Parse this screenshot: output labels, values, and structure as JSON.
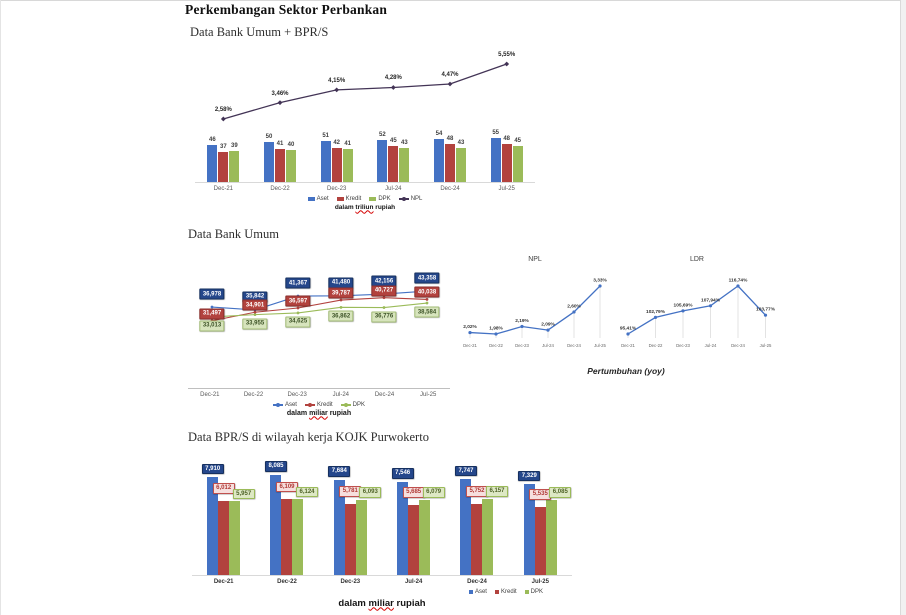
{
  "page": {
    "title": "Perkembangan Sektor Perbankan",
    "section1_title": "Data Bank Umum + BPR/S",
    "section2_title": "Data Bank Umum",
    "section3_title": "Data BPR/S di wilayah kerja KOJK Purwokerto",
    "pertumbuhan_caption": "Pertumbuhan (yoy)"
  },
  "colors": {
    "aset": "#4472C4",
    "kredit": "#B2423E",
    "dpk": "#9BBB59",
    "npl_line": "#433456",
    "mini_line": "#4472C4"
  },
  "chart_data": [
    {
      "id": "c1",
      "type": "bar",
      "title": "Data Bank Umum + BPR/S",
      "categories": [
        "Dec-21",
        "Dec-22",
        "Dec-23",
        "Jul-24",
        "Dec-24",
        "Jul-25"
      ],
      "series": [
        {
          "name": "Aset",
          "type": "bar",
          "color": "#4472C4",
          "values": [
            46,
            50,
            51,
            52,
            54,
            55
          ]
        },
        {
          "name": "Kredit",
          "type": "bar",
          "color": "#B2423E",
          "values": [
            37,
            41,
            42,
            45,
            48,
            48
          ]
        },
        {
          "name": "DPK",
          "type": "bar",
          "color": "#9BBB59",
          "values": [
            39,
            40,
            41,
            43,
            43,
            45
          ]
        },
        {
          "name": "NPL",
          "type": "line",
          "color": "#433456",
          "values": [
            2.58,
            3.46,
            4.15,
            4.28,
            4.47,
            5.55
          ],
          "labels": [
            "2,58%",
            "3,46%",
            "4,15%",
            "4,28%",
            "4,47%",
            "5,55%"
          ]
        }
      ],
      "caption": {
        "pre": "dalam",
        "word": "triliun",
        "post": "rupiah"
      }
    },
    {
      "id": "c2",
      "type": "line",
      "title": "Data Bank Umum",
      "categories": [
        "Dec-21",
        "Dec-22",
        "Dec-23",
        "Jul-24",
        "Dec-24",
        "Jul-25"
      ],
      "series": [
        {
          "name": "Aset",
          "color": "#4472C4",
          "values": [
            36978,
            35842,
            41367,
            41480,
            42156,
            43358
          ],
          "labels": [
            "36,978",
            "35,842",
            "41,367",
            "41,480",
            "42,156",
            "43,358"
          ]
        },
        {
          "name": "Kredit",
          "color": "#B2423E",
          "values": [
            31497,
            34901,
            36597,
            39787,
            40727,
            40038
          ],
          "labels": [
            "31,497",
            "34,901",
            "36,597",
            "39,787",
            "40,727",
            "40,038"
          ]
        },
        {
          "name": "DPK",
          "color": "#9BBB59",
          "values": [
            33013,
            33955,
            34625,
            36862,
            36776,
            38584
          ],
          "labels": [
            "33,013",
            "33,955",
            "34,625",
            "36,862",
            "36,776",
            "38,584"
          ]
        }
      ],
      "caption": {
        "pre": "dalam",
        "word": "miliar",
        "post": "rupiah"
      }
    },
    {
      "id": "npl",
      "type": "line",
      "title": "NPL",
      "categories": [
        "Dec-21",
        "Dec-22",
        "Dec-23",
        "Jul-24",
        "Dec-24",
        "Jul-25"
      ],
      "values": [
        2.02,
        1.98,
        2.19,
        2.09,
        2.6,
        3.33
      ],
      "labels": [
        "2,02%",
        "1,98%",
        "2,19%",
        "2,09%",
        "2,60%",
        "3,33%"
      ]
    },
    {
      "id": "ldr",
      "type": "line",
      "title": "LDR",
      "categories": [
        "Dec-21",
        "Dec-22",
        "Dec-23",
        "Jul-24",
        "Dec-24",
        "Jul-25"
      ],
      "values": [
        95.41,
        102.79,
        105.69,
        107.94,
        116.74,
        103.77
      ],
      "labels": [
        "95,41%",
        "102,79%",
        "105,69%",
        "107,94%",
        "116,74%",
        "103,77%"
      ]
    },
    {
      "id": "c3",
      "type": "bar",
      "title": "Data BPR/S di wilayah kerja KOJK Purwokerto",
      "categories": [
        "Dec-21",
        "Dec-22",
        "Dec-23",
        "Jul-24",
        "Dec-24",
        "Jul-25"
      ],
      "series": [
        {
          "name": "Aset",
          "color": "#4472C4",
          "values": [
            7910,
            8085,
            7684,
            7546,
            7747,
            7329
          ],
          "labels": [
            "7,910",
            "8,085",
            "7,684",
            "7,546",
            "7,747",
            "7,329"
          ]
        },
        {
          "name": "Kredit",
          "color": "#B2423E",
          "values": [
            6012,
            6109,
            5781,
            5685,
            5752,
            5535
          ],
          "labels": [
            "6,012",
            "6,109",
            "5,781",
            "5,685",
            "5,752",
            "5,535"
          ]
        },
        {
          "name": "DPK",
          "color": "#9BBB59",
          "values": [
            5957,
            6124,
            6093,
            6079,
            6157,
            6085
          ],
          "labels": [
            "5,957",
            "6,124",
            "6,093",
            "6,079",
            "6,157",
            "6,085"
          ]
        }
      ],
      "caption": {
        "pre": "dalam",
        "word": "miliar",
        "post": "rupiah"
      }
    }
  ]
}
